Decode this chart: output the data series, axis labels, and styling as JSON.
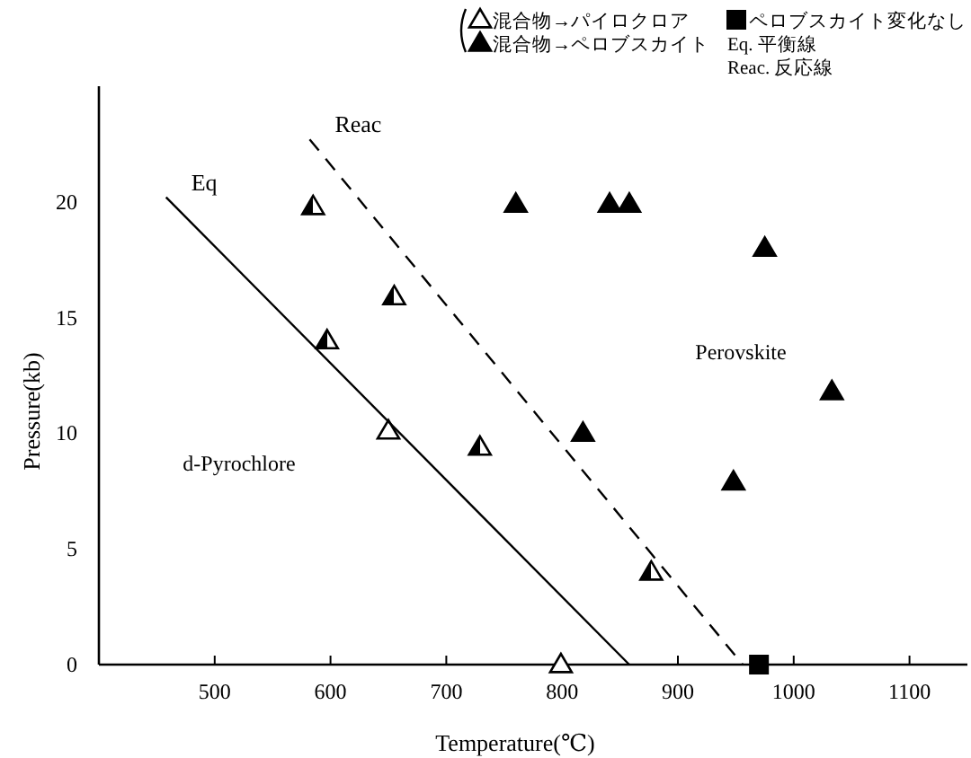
{
  "chart_data": {
    "type": "scatter",
    "xlabel": "Temperature(℃)",
    "ylabel": "Pressure(kb)",
    "xlim": [
      400,
      1150
    ],
    "ylim": [
      0,
      25
    ],
    "xticks": [
      500,
      600,
      700,
      800,
      900,
      1000,
      1100
    ],
    "yticks": [
      0,
      5,
      10,
      15,
      20
    ],
    "grid": false,
    "legend": "top right",
    "series": [
      {
        "name": "混合物→パイロクロア",
        "marker": "triangle",
        "color": "#ffffff",
        "x": [
          650,
          799
        ],
        "values": [
          10.1,
          0
        ]
      },
      {
        "name": "混合物→ペロブスカイト",
        "marker": "triangle",
        "color": "#000000",
        "x": [
          760,
          818,
          841,
          858,
          948,
          975,
          1033
        ],
        "values": [
          19.9,
          10.0,
          19.9,
          19.9,
          7.9,
          18.0,
          11.8
        ]
      },
      {
        "name": "ペロブスカイト変化なし",
        "marker": "square",
        "color": "#000000",
        "x": [
          970
        ],
        "values": [
          0
        ]
      },
      {
        "marker": "triangle",
        "color": "#000000",
        "x": [
          585,
          597,
          655,
          729,
          877
        ],
        "values": [
          19.8,
          14.0,
          15.9,
          9.4,
          4.0
        ]
      },
      {
        "name": "Eq",
        "type": "line",
        "line_style": "solid",
        "color": "#000000",
        "x": [
          458,
          858
        ],
        "values": [
          20.2,
          0
        ]
      },
      {
        "name": "Reac",
        "type": "line",
        "line_style": "dashed",
        "color": "#000000",
        "x": [
          582,
          956
        ],
        "values": [
          22.7,
          0
        ]
      }
    ],
    "annotations": [
      "Eq. 平衡線",
      "Reac. 反応線",
      "d-Pyrochlore",
      "Perovskite"
    ]
  }
}
